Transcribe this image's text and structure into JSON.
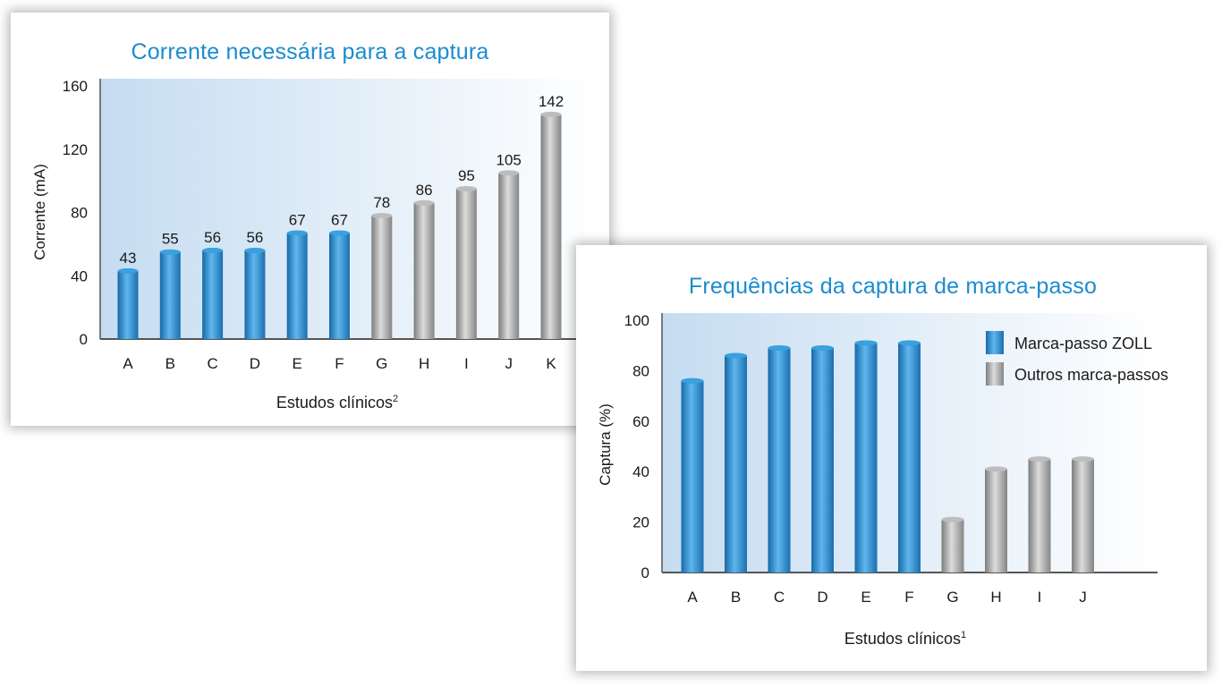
{
  "colors": {
    "title": "#1b8ccf",
    "zoll_bar": "#2b8fd2",
    "other_bar": "#a3a3a3",
    "panel_gradient_start": "#c5dcf1",
    "panel_gradient_end": "#ffffff",
    "axis": "#555555",
    "text": "#1a1a1a"
  },
  "chart_data": [
    {
      "type": "bar",
      "title": "Corrente necessária para a captura",
      "xlabel": "Estudos clínicos",
      "xlabel_sup": "2",
      "ylabel": "Corrente (mA)",
      "ylim": [
        0,
        160
      ],
      "yticks": [
        0,
        40,
        80,
        120,
        160
      ],
      "grid": false,
      "categories": [
        "A",
        "B",
        "C",
        "D",
        "E",
        "F",
        "G",
        "H",
        "I",
        "J",
        "K"
      ],
      "values": [
        43,
        55,
        56,
        56,
        67,
        67,
        78,
        86,
        95,
        105,
        142
      ],
      "data_labels": [
        "43",
        "55",
        "56",
        "56",
        "67",
        "67",
        "78",
        "86",
        "95",
        "105",
        "142"
      ],
      "bar_groups": [
        "zoll",
        "zoll",
        "zoll",
        "zoll",
        "zoll",
        "zoll",
        "other",
        "other",
        "other",
        "other",
        "other"
      ]
    },
    {
      "type": "bar",
      "title": "Frequências da captura de marca-passo",
      "xlabel": "Estudos clínicos",
      "xlabel_sup": "1",
      "ylabel": "Captura (%)",
      "ylim": [
        0,
        100
      ],
      "yticks": [
        0,
        20,
        40,
        60,
        80,
        100
      ],
      "grid": false,
      "legend_position": "top-right",
      "legend": [
        {
          "name": "Marca-passo ZOLL",
          "group": "zoll"
        },
        {
          "name": "Outros marca-passos",
          "group": "other"
        }
      ],
      "categories": [
        "A",
        "B",
        "C",
        "D",
        "E",
        "F",
        "G",
        "H",
        "I",
        "J"
      ],
      "values": [
        76,
        86,
        89,
        89,
        91,
        91,
        21,
        41,
        45,
        45
      ],
      "bar_groups": [
        "zoll",
        "zoll",
        "zoll",
        "zoll",
        "zoll",
        "zoll",
        "other",
        "other",
        "other",
        "other"
      ]
    }
  ]
}
